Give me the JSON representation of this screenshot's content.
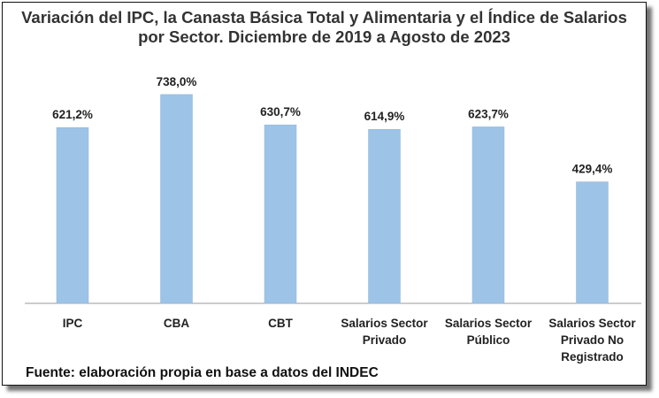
{
  "chart_data": {
    "type": "bar",
    "title": "Variación del IPC, la Canasta Básica Total y Alimentaria y el Índice de Salarios por Sector. Diciembre de 2019 a Agosto de 2023",
    "categories": [
      [
        "IPC"
      ],
      [
        "CBA"
      ],
      [
        "CBT"
      ],
      [
        "Salarios Sector",
        "Privado"
      ],
      [
        "Salarios Sector",
        "Público"
      ],
      [
        "Salarios Sector",
        "Privado No",
        "Registrado"
      ]
    ],
    "values": [
      621.2,
      738.0,
      630.7,
      614.9,
      623.7,
      429.4
    ],
    "data_labels": [
      "621,2%",
      "738,0%",
      "630,7%",
      "614,9%",
      "623,7%",
      "429,4%"
    ],
    "unit": "%",
    "ylim": [
      0,
      800
    ],
    "grid": false,
    "legend": "none",
    "colors": {
      "bar": "#9dc3e6",
      "bar_edge": "#8fb6dc",
      "axis": "#999999"
    },
    "source": "Fuente: elaboración propia en base a datos del INDEC"
  }
}
